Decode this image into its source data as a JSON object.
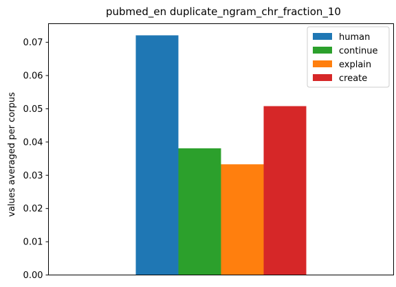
{
  "chart_data": {
    "type": "bar",
    "title": "pubmed_en duplicate_ngram_chr_fraction_10",
    "xlabel": "",
    "ylabel": "values averaged per corpus",
    "ylim": [
      0,
      0.0756
    ],
    "yticks": [
      0.0,
      0.01,
      0.02,
      0.03,
      0.04,
      0.05,
      0.06,
      0.07
    ],
    "ytick_labels": [
      "0.00",
      "0.01",
      "0.02",
      "0.03",
      "0.04",
      "0.05",
      "0.06",
      "0.07"
    ],
    "grid": false,
    "legend_position": "top-right",
    "series": [
      {
        "name": "human",
        "value": 0.0721,
        "color": "#1f77b4"
      },
      {
        "name": "continue",
        "value": 0.0381,
        "color": "#2ca02c"
      },
      {
        "name": "explain",
        "value": 0.0333,
        "color": "#ff7f0e"
      },
      {
        "name": "create",
        "value": 0.0508,
        "color": "#d62728"
      }
    ]
  }
}
